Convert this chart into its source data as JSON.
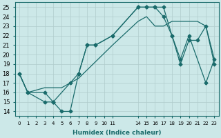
{
  "xlabel": "Humidex (Indice chaleur)",
  "bg_color": "#cce8e8",
  "grid_color": "#b0cccc",
  "line_color": "#1a6b6b",
  "xlim": [
    -0.5,
    23.5
  ],
  "ylim": [
    13.5,
    25.5
  ],
  "xticks": [
    0,
    1,
    2,
    3,
    4,
    5,
    6,
    7,
    8,
    9,
    10,
    11,
    14,
    15,
    16,
    17,
    18,
    19,
    20,
    21,
    22,
    23
  ],
  "yticks": [
    14,
    15,
    16,
    17,
    18,
    19,
    20,
    21,
    22,
    23,
    24,
    25
  ],
  "line1_x": [
    0,
    1,
    3,
    4,
    5,
    6,
    7,
    8,
    9,
    11,
    14,
    15,
    16,
    17,
    18,
    19,
    20,
    21,
    22,
    23
  ],
  "line1_y": [
    18,
    16,
    15,
    15,
    14,
    14,
    18,
    21,
    21,
    22,
    25,
    25,
    25,
    24,
    22,
    19,
    21.5,
    21.5,
    23,
    19
  ],
  "line2_x": [
    0,
    1,
    3,
    4,
    6,
    7,
    8,
    9,
    11,
    14,
    15,
    16,
    17,
    18,
    19,
    20,
    22,
    23
  ],
  "line2_y": [
    18,
    16,
    16,
    15,
    17,
    18,
    21,
    21,
    22,
    25,
    25,
    25,
    25,
    22,
    19.5,
    22,
    17,
    19.5
  ],
  "line3_x": [
    0,
    1,
    3,
    5,
    6,
    7,
    11,
    14,
    15,
    16,
    17,
    18,
    19,
    20,
    21,
    22,
    23
  ],
  "line3_y": [
    18,
    16,
    16.5,
    16.5,
    17,
    17.5,
    21,
    23.5,
    24,
    23,
    23,
    23.5,
    23.5,
    23.5,
    23.5,
    23,
    19.5
  ]
}
